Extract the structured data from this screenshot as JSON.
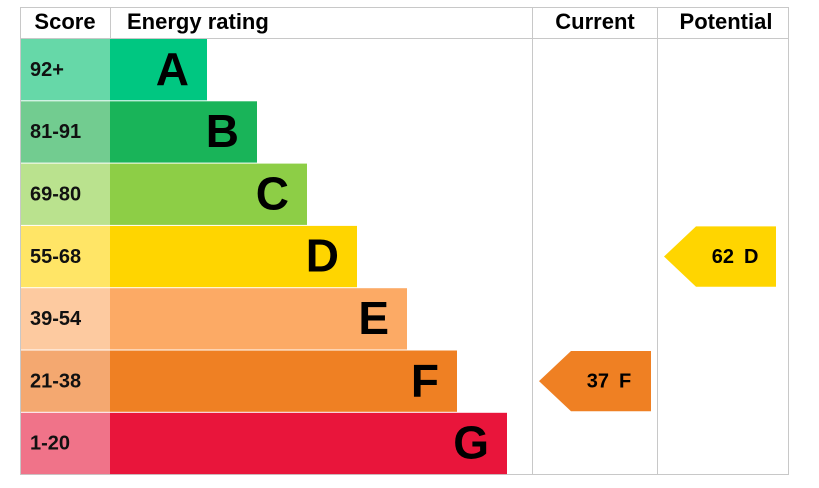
{
  "header": {
    "score": "Score",
    "rating": "Energy rating",
    "current": "Current",
    "potential": "Potential"
  },
  "bands": [
    {
      "score": "92+",
      "letter": "A",
      "color": "#00c781",
      "light": "#66d8a8"
    },
    {
      "score": "81-91",
      "letter": "B",
      "color": "#19b459",
      "light": "#72cc90"
    },
    {
      "score": "69-80",
      "letter": "C",
      "color": "#8dce46",
      "light": "#bae28e"
    },
    {
      "score": "55-68",
      "letter": "D",
      "color": "#ffd500",
      "light": "#ffe566"
    },
    {
      "score": "39-54",
      "letter": "E",
      "color": "#fcaa65",
      "light": "#fdcaa0"
    },
    {
      "score": "21-38",
      "letter": "F",
      "color": "#ef8023",
      "light": "#f4a870"
    },
    {
      "score": "1-20",
      "letter": "G",
      "color": "#e9153b",
      "light": "#f07389"
    }
  ],
  "current": {
    "value": 37,
    "letter": "F"
  },
  "potential": {
    "value": 62,
    "letter": "D"
  }
}
